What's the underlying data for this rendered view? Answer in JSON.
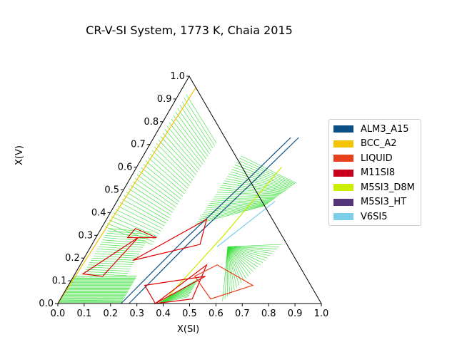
{
  "title": "CR-V-SI System, 1773 K, Chaia 2015",
  "chart_data": {
    "type": "scatter",
    "subtype": "ternary-phase-diagram",
    "title": "CR-V-SI System, 1773 K, Chaia 2015",
    "xlabel": "X(SI)",
    "ylabel": "X(V)",
    "xlim": [
      0,
      1
    ],
    "ylim": [
      0,
      1
    ],
    "x_ticks": [
      "0.0",
      "0.1",
      "0.2",
      "0.3",
      "0.4",
      "0.5",
      "0.6",
      "0.7",
      "0.8",
      "0.9",
      "1.0"
    ],
    "y_ticks": [
      "0.0",
      "0.1",
      "0.2",
      "0.3",
      "0.4",
      "0.5",
      "0.6",
      "0.7",
      "0.8",
      "0.9",
      "1.0"
    ],
    "legend_position": "right",
    "legend": [
      {
        "name": "ALM3_A15",
        "color": "#0a4f86"
      },
      {
        "name": "BCC_A2",
        "color": "#f5c400"
      },
      {
        "name": "LIQUID",
        "color": "#e8401c"
      },
      {
        "name": "M11SI8",
        "color": "#c8001e"
      },
      {
        "name": "M5SI3_D8M",
        "color": "#ccee00"
      },
      {
        "name": "M5SI3_HT",
        "color": "#55357a"
      },
      {
        "name": "V6SI5",
        "color": "#7ccfe8"
      }
    ],
    "tie_line_color": "#33dd33",
    "boundary_color": "#dd0000",
    "phase_boundaries": [
      {
        "phase": "BCC_A2",
        "points": [
          [
            0,
            0
          ],
          [
            0.05,
            0.95
          ]
        ]
      },
      {
        "phase": "BCC_A2",
        "points": [
          [
            0.22,
            0
          ],
          [
            0.27,
            0.73
          ]
        ]
      },
      {
        "phase": "ALM3_A15",
        "points": [
          [
            0.24,
            0
          ],
          [
            0.61,
            0.75
          ]
        ]
      },
      {
        "phase": "ALM3_A15",
        "points": [
          [
            0.27,
            0
          ],
          [
            0.62,
            0.73
          ]
        ]
      },
      {
        "phase": "M5SI3_D8M",
        "points": [
          [
            0.37,
            0
          ],
          [
            0.37,
            0.6
          ]
        ]
      },
      {
        "phase": "V6SI5",
        "points": [
          [
            0.45,
            0
          ],
          [
            0.45,
            0.55
          ]
        ]
      }
    ],
    "three_phase_triangles": [
      [
        [
          0.13,
          0.33
        ],
        [
          0.12,
          0.29
        ],
        [
          0.23,
          0.29
        ]
      ],
      [
        [
          0.03,
          0.13
        ],
        [
          0.11,
          0.12
        ],
        [
          0.16,
          0.29
        ]
      ],
      [
        [
          0.19,
          0.19
        ],
        [
          0.38,
          0.37
        ],
        [
          0.41,
          0.26
        ]
      ],
      [
        [
          0.29,
          0.08
        ],
        [
          0.37,
          0.0
        ],
        [
          0.5,
          0.12
        ]
      ],
      [
        [
          0.37,
          0.0
        ],
        [
          0.5,
          0.02
        ],
        [
          0.48,
          0.17
        ]
      ]
    ],
    "liquid_region": [
      [
        0.46,
        0.12
      ],
      [
        0.57,
        0.02
      ],
      [
        0.7,
        0.08
      ],
      [
        0.52,
        0.17
      ]
    ]
  }
}
